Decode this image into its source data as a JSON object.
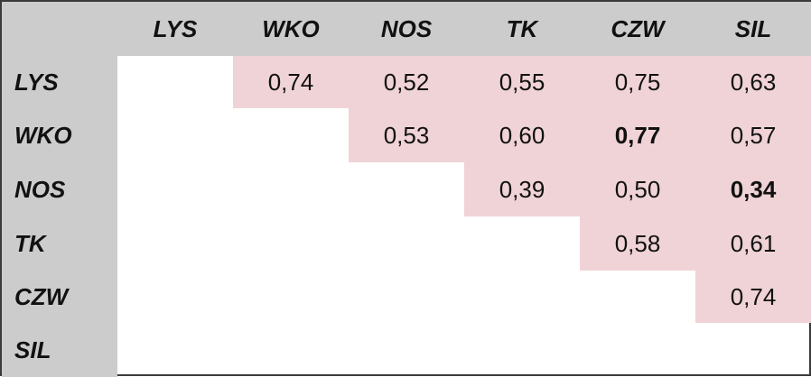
{
  "labels": [
    "LYS",
    "WKO",
    "NOS",
    "TK",
    "CZW",
    "SIL"
  ],
  "matrix": [
    {
      "row": "LYS",
      "cells": [
        {
          "v": "0,74"
        },
        {
          "v": "0,52"
        },
        {
          "v": "0,55"
        },
        {
          "v": "0,75"
        },
        {
          "v": "0,63"
        }
      ]
    },
    {
      "row": "WKO",
      "cells": [
        {
          "v": "0,53"
        },
        {
          "v": "0,60"
        },
        {
          "v": "0,77",
          "bold": true
        },
        {
          "v": "0,57"
        }
      ]
    },
    {
      "row": "NOS",
      "cells": [
        {
          "v": "0,39"
        },
        {
          "v": "0,50"
        },
        {
          "v": "0,34",
          "bold": true
        }
      ]
    },
    {
      "row": "TK",
      "cells": [
        {
          "v": "0,58"
        },
        {
          "v": "0,61"
        }
      ]
    },
    {
      "row": "CZW",
      "cells": [
        {
          "v": "0,74"
        }
      ]
    },
    {
      "row": "SIL",
      "cells": []
    }
  ],
  "colors": {
    "header_bg": "#cccccc",
    "highlight": "#f0d3d6",
    "border": "#3a3a3a"
  }
}
